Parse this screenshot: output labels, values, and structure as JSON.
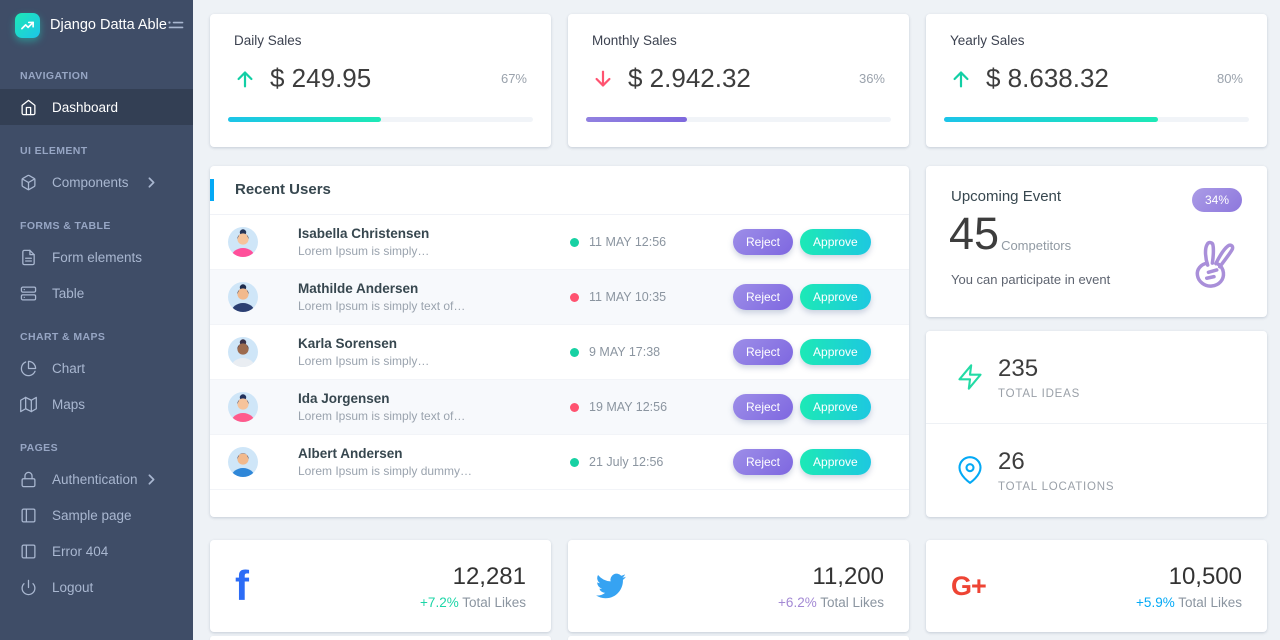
{
  "brand": {
    "title": "Django Datta Able"
  },
  "sidebar": {
    "sections": [
      {
        "caption": "NAVIGATION",
        "items": [
          {
            "label": "Dashboard",
            "icon": "home-icon",
            "active": true
          }
        ]
      },
      {
        "caption": "UI ELEMENT",
        "items": [
          {
            "label": "Components",
            "icon": "box-icon",
            "chevron": true
          }
        ]
      },
      {
        "caption": "FORMS & TABLE",
        "items": [
          {
            "label": "Form elements",
            "icon": "file-text-icon"
          },
          {
            "label": "Table",
            "icon": "server-icon"
          }
        ]
      },
      {
        "caption": "CHART & MAPS",
        "items": [
          {
            "label": "Chart",
            "icon": "pie-chart-icon"
          },
          {
            "label": "Maps",
            "icon": "map-icon"
          }
        ]
      },
      {
        "caption": "PAGES",
        "items": [
          {
            "label": "Authentication",
            "icon": "lock-icon",
            "chevron": true
          },
          {
            "label": "Sample page",
            "icon": "sidebar-icon"
          },
          {
            "label": "Error 404",
            "icon": "sidebar-icon"
          },
          {
            "label": "Logout",
            "icon": "power-icon"
          }
        ]
      }
    ]
  },
  "sales": {
    "daily": {
      "title": "Daily Sales",
      "value": "$ 249.95",
      "percent": "67%",
      "trend": "up",
      "bar_fill_pct": 50,
      "bar_style": "teal"
    },
    "monthly": {
      "title": "Monthly Sales",
      "value": "$ 2.942.32",
      "percent": "36%",
      "trend": "down",
      "bar_fill_pct": 33,
      "bar_style": "purple"
    },
    "yearly": {
      "title": "Yearly Sales",
      "value": "$ 8.638.32",
      "percent": "80%",
      "trend": "up",
      "bar_fill_pct": 70,
      "bar_style": "teal"
    }
  },
  "recent_users": {
    "title": "Recent Users",
    "actions": {
      "reject": "Reject",
      "approve": "Approve"
    },
    "rows": [
      {
        "name": "Isabella Christensen",
        "desc": "Lorem Ipsum is simply…",
        "date": "11 MAY 12:56",
        "dot_color": "#17d1a3",
        "avatar": {
          "bg": "#cdeaf6",
          "skin": "#f6c39b",
          "hair": "#263457",
          "shirt": "#ff4f9a",
          "bun": true
        }
      },
      {
        "name": "Mathilde Andersen",
        "desc": "Lorem Ipsum is simply text of…",
        "date": "11 MAY 10:35",
        "dot_color": "#ff5370",
        "avatar": {
          "bg": "#aed9f2",
          "skin": "#f2b98c",
          "hair": "#1d2c4e",
          "shirt": "#2b3f72",
          "bun": true
        }
      },
      {
        "name": "Karla Sorensen",
        "desc": "Lorem Ipsum is simply…",
        "date": "9 MAY 17:38",
        "dot_color": "#17d1a3",
        "avatar": {
          "bg": "#8fd0e8",
          "skin": "#9c6b4f",
          "hair": "#3a3148",
          "shirt": "#e9edf2",
          "bun": true
        }
      },
      {
        "name": "Ida Jorgensen",
        "desc": "Lorem Ipsum is simply text of…",
        "date": "19 MAY 12:56",
        "dot_color": "#ff5370",
        "avatar": {
          "bg": "#cfe3f8",
          "skin": "#f6c39b",
          "hair": "#22315c",
          "shirt": "#ff5b8d",
          "bun": true
        }
      },
      {
        "name": "Albert Andersen",
        "desc": "Lorem Ipsum is simply dummy…",
        "date": "21 July 12:56",
        "dot_color": "#17d1a3",
        "avatar": {
          "bg": "#bfe2f5",
          "skin": "#f2b98c",
          "hair": "#2a3a63",
          "shirt": "#2f87d8",
          "bun": false
        }
      }
    ]
  },
  "event": {
    "title": "Upcoming Event",
    "badge": "34%",
    "number": "45",
    "unit": "Competitors",
    "note": "You can participate in event",
    "icon": "peace-hand-icon"
  },
  "stats": [
    {
      "icon": "zap-icon",
      "value": "235",
      "label": "TOTAL IDEAS",
      "color": "#23dba5"
    },
    {
      "icon": "map-pin-icon",
      "value": "26",
      "label": "TOTAL LOCATIONS",
      "color": "#04a9f5"
    }
  ],
  "social": [
    {
      "network": "facebook",
      "count": "12,281",
      "delta": "+7.2%",
      "suffix": " Total Likes",
      "delta_color": "#1dd5a7"
    },
    {
      "network": "twitter",
      "count": "11,200",
      "delta": "+6.2%",
      "suffix": " Total Likes",
      "delta_color": "#a389d4"
    },
    {
      "network": "google-plus",
      "count": "10,500",
      "delta": "+5.9%",
      "suffix": " Total Likes",
      "delta_color": "#04a9f5"
    }
  ]
}
